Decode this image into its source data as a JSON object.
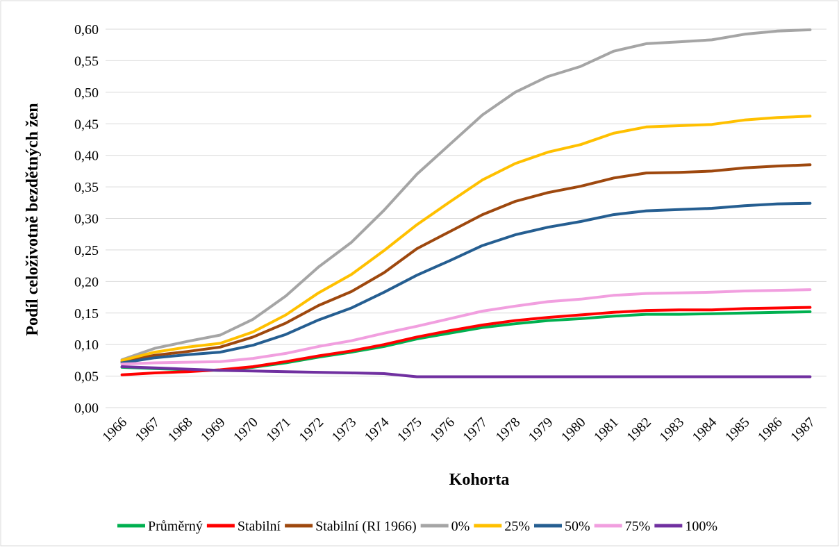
{
  "chart_data": {
    "type": "line",
    "x_label": "Kohorta",
    "y_label": "Podíl  celoživotně bezdětných žen",
    "categories": [
      "1966",
      "1967",
      "1968",
      "1969",
      "1970",
      "1971",
      "1972",
      "1973",
      "1974",
      "1975",
      "1976",
      "1977",
      "1978",
      "1979",
      "1980",
      "1981",
      "1982",
      "1983",
      "1984",
      "1985",
      "1986",
      "1987"
    ],
    "series": [
      {
        "name": "Průměrný",
        "color": "#00b050",
        "values": [
          0.064,
          0.062,
          0.06,
          0.059,
          0.064,
          0.071,
          0.08,
          0.088,
          0.097,
          0.109,
          0.118,
          0.127,
          0.133,
          0.138,
          0.141,
          0.145,
          0.148,
          0.148,
          0.149,
          0.15,
          0.151,
          0.152
        ]
      },
      {
        "name": "Stabilní",
        "color": "#ff0000",
        "values": [
          0.052,
          0.055,
          0.057,
          0.06,
          0.065,
          0.073,
          0.082,
          0.09,
          0.1,
          0.112,
          0.122,
          0.131,
          0.138,
          0.143,
          0.147,
          0.151,
          0.154,
          0.155,
          0.155,
          0.157,
          0.158,
          0.159
        ]
      },
      {
        "name": "Stabilní (RI 1966)",
        "color": "#9e480e",
        "values": [
          0.073,
          0.083,
          0.089,
          0.096,
          0.112,
          0.134,
          0.162,
          0.184,
          0.214,
          0.252,
          0.279,
          0.306,
          0.327,
          0.341,
          0.351,
          0.364,
          0.372,
          0.373,
          0.375,
          0.38,
          0.383,
          0.385
        ]
      },
      {
        "name": "0%",
        "color": "#a5a5a5",
        "values": [
          0.076,
          0.094,
          0.105,
          0.115,
          0.14,
          0.177,
          0.223,
          0.262,
          0.313,
          0.37,
          0.417,
          0.464,
          0.5,
          0.525,
          0.541,
          0.565,
          0.577,
          0.58,
          0.583,
          0.592,
          0.597,
          0.599
        ]
      },
      {
        "name": "25%",
        "color": "#ffc000",
        "values": [
          0.075,
          0.088,
          0.096,
          0.102,
          0.12,
          0.147,
          0.182,
          0.211,
          0.249,
          0.29,
          0.326,
          0.361,
          0.387,
          0.405,
          0.417,
          0.435,
          0.445,
          0.447,
          0.449,
          0.456,
          0.46,
          0.462
        ]
      },
      {
        "name": "50%",
        "color": "#255e91",
        "values": [
          0.071,
          0.079,
          0.084,
          0.088,
          0.099,
          0.116,
          0.139,
          0.158,
          0.183,
          0.21,
          0.233,
          0.257,
          0.274,
          0.286,
          0.295,
          0.306,
          0.312,
          0.314,
          0.316,
          0.32,
          0.323,
          0.324
        ]
      },
      {
        "name": "75%",
        "color": "#f19fdf",
        "values": [
          0.069,
          0.071,
          0.072,
          0.073,
          0.078,
          0.086,
          0.097,
          0.106,
          0.118,
          0.129,
          0.141,
          0.153,
          0.161,
          0.168,
          0.172,
          0.178,
          0.181,
          0.182,
          0.183,
          0.185,
          0.186,
          0.187
        ]
      },
      {
        "name": "100%",
        "color": "#7030a0",
        "values": [
          0.065,
          0.063,
          0.061,
          0.059,
          0.058,
          0.057,
          0.056,
          0.055,
          0.054,
          0.049,
          0.049,
          0.049,
          0.049,
          0.049,
          0.049,
          0.049,
          0.049,
          0.049,
          0.049,
          0.049,
          0.049,
          0.049
        ]
      }
    ],
    "ylim": [
      0,
      0.6
    ],
    "yticks": [
      {
        "value": 0,
        "label": "0,00"
      },
      {
        "value": 0.05,
        "label": "0,05"
      },
      {
        "value": 0.1,
        "label": "0,10"
      },
      {
        "value": 0.15,
        "label": "0,15"
      },
      {
        "value": 0.2,
        "label": "0,20"
      },
      {
        "value": 0.25,
        "label": "0,25"
      },
      {
        "value": 0.3,
        "label": "0,30"
      },
      {
        "value": 0.35,
        "label": "0,35"
      },
      {
        "value": 0.4,
        "label": "0,40"
      },
      {
        "value": 0.45,
        "label": "0,45"
      },
      {
        "value": 0.5,
        "label": "0,50"
      },
      {
        "value": 0.55,
        "label": "0,55"
      },
      {
        "value": 0.6,
        "label": "0,60"
      }
    ],
    "grid": true,
    "legend": "bottom"
  }
}
